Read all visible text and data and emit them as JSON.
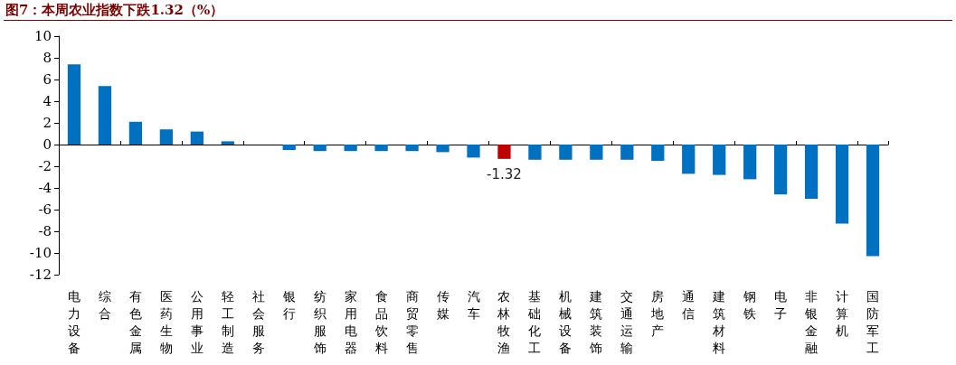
{
  "chart_data": {
    "type": "bar",
    "title": "图7：本周农业指数下跌1.32（%）",
    "categories": [
      "电力设备",
      "综合",
      "有色金属",
      "医药生物",
      "公用事业",
      "轻工制造",
      "社会服务",
      "银行",
      "纺织服饰",
      "家用电器",
      "食品饮料",
      "商贸零售",
      "传媒",
      "汽车",
      "农林牧渔",
      "基础化工",
      "机械设备",
      "建筑装饰",
      "交通运输",
      "房地产",
      "通信",
      "建筑材料",
      "钢铁",
      "电子",
      "非银金融",
      "计算机",
      "国防军工"
    ],
    "values": [
      7.4,
      5.4,
      2.1,
      1.4,
      1.2,
      0.3,
      0.0,
      -0.5,
      -0.6,
      -0.6,
      -0.6,
      -0.6,
      -0.7,
      -1.2,
      -1.32,
      -1.4,
      -1.4,
      -1.4,
      -1.4,
      -1.5,
      -2.7,
      -2.8,
      -3.2,
      -4.6,
      -5.0,
      -7.3,
      -10.3
    ],
    "colors": [
      "#0070c0",
      "#0070c0",
      "#0070c0",
      "#0070c0",
      "#0070c0",
      "#0070c0",
      "#0070c0",
      "#0070c0",
      "#0070c0",
      "#0070c0",
      "#0070c0",
      "#0070c0",
      "#0070c0",
      "#0070c0",
      "#c00000",
      "#0070c0",
      "#0070c0",
      "#0070c0",
      "#0070c0",
      "#0070c0",
      "#0070c0",
      "#0070c0",
      "#0070c0",
      "#0070c0",
      "#0070c0",
      "#0070c0",
      "#0070c0"
    ],
    "value_labels": [
      null,
      null,
      null,
      null,
      null,
      null,
      null,
      null,
      null,
      null,
      null,
      null,
      null,
      null,
      "-1.32",
      null,
      null,
      null,
      null,
      null,
      null,
      null,
      null,
      null,
      null,
      null,
      null
    ],
    "ylim": [
      -12,
      10
    ],
    "yticks": [
      -12,
      -10,
      -8,
      -6,
      -4,
      -2,
      0,
      2,
      4,
      6,
      8,
      10
    ]
  }
}
